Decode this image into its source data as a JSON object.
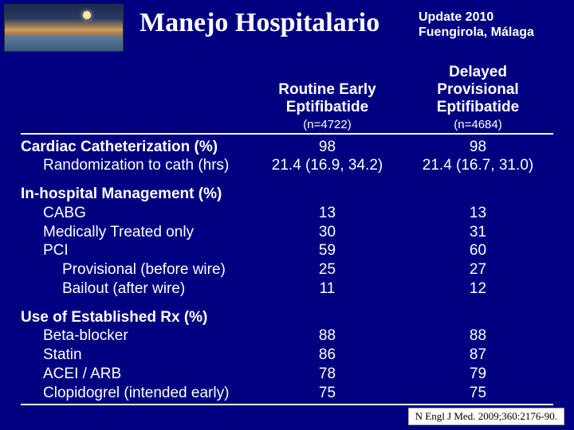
{
  "background_color": "#000080",
  "title": "Manejo Hospitalario",
  "subtitle_line1": "Update 2010",
  "subtitle_line2": "Fuengirola, Málaga",
  "col1": {
    "line1": "Routine   Early",
    "line2": "Eptifibatide",
    "n": "(n=4722)"
  },
  "col2": {
    "line1": "Delayed",
    "line2": "Provisional",
    "line3": "Eptifibatide",
    "n": "(n=4684)"
  },
  "sections": {
    "cath": {
      "header": "Cardiac Catheterization (%)",
      "r1_label": "Randomization to cath (hrs)",
      "pct": {
        "c1": "98",
        "c2": "98"
      },
      "hrs": {
        "c1": "21.4 (16.9, 34.2)",
        "c2": "21.4 (16.7, 31.0)"
      }
    },
    "inhosp": {
      "header": "In-hospital Management (%)",
      "cabg": {
        "label": "CABG",
        "c1": "13",
        "c2": "13"
      },
      "med": {
        "label": "Medically Treated only",
        "c1": "30",
        "c2": "31"
      },
      "pci": {
        "label": "PCI",
        "c1": "59",
        "c2": "60"
      },
      "prov": {
        "label": "Provisional (before wire)",
        "c1": "25",
        "c2": "27"
      },
      "bail": {
        "label": "Bailout (after wire)",
        "c1": "11",
        "c2": "12"
      }
    },
    "rx": {
      "header": "Use of Established Rx (%)",
      "beta": {
        "label": "Beta-blocker",
        "c1": "88",
        "c2": "88"
      },
      "statin": {
        "label": "Statin",
        "c1": "86",
        "c2": "87"
      },
      "acei": {
        "label": "ACEI / ARB",
        "c1": "78",
        "c2": "79"
      },
      "clop": {
        "label": "Clopidogrel (intended early)",
        "c1": "75",
        "c2": "75"
      }
    }
  },
  "citation": "N Engl J Med. 2009;360:2176-90."
}
